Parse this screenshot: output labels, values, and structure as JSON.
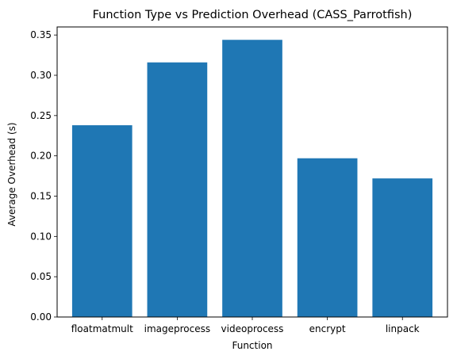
{
  "chart_data": {
    "type": "bar",
    "title": "Function Type vs Prediction Overhead (CASS_Parrotfish)",
    "xlabel": "Function",
    "ylabel": "Average Overhead (s)",
    "categories": [
      "floatmatmult",
      "imageprocess",
      "videoprocess",
      "encrypt",
      "linpack"
    ],
    "values": [
      0.238,
      0.316,
      0.344,
      0.197,
      0.172
    ],
    "ylim": [
      0,
      0.36
    ],
    "yticks": [
      "0.00",
      "0.05",
      "0.10",
      "0.15",
      "0.20",
      "0.25",
      "0.30",
      "0.35"
    ],
    "bar_color": "#1f77b4",
    "grid": false,
    "legend": "none"
  }
}
